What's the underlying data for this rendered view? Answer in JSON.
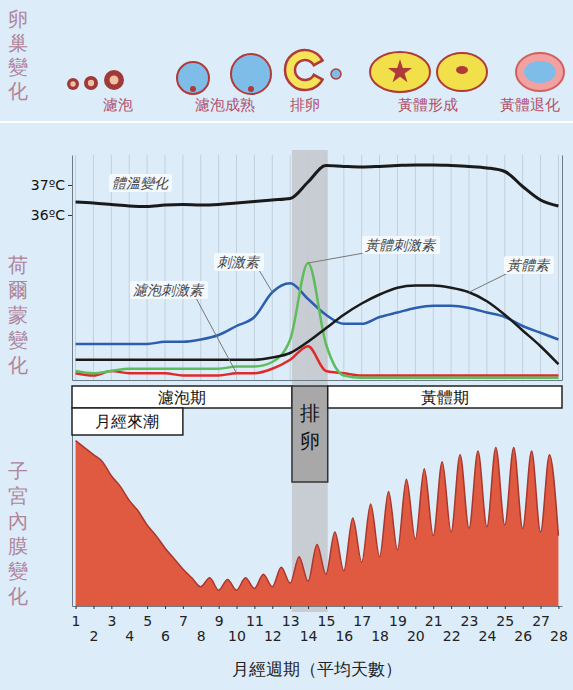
{
  "ovary": {
    "title": "卵巢變化",
    "stages": [
      "濾泡",
      "濾泡成熟",
      "排卵",
      "黃體形成",
      "黃體退化"
    ]
  },
  "chart_data": [
    {
      "type": "line",
      "title": "荷爾蒙變化",
      "x": [
        1,
        2,
        3,
        4,
        5,
        6,
        7,
        8,
        9,
        10,
        11,
        12,
        13,
        14,
        15,
        16,
        17,
        18,
        19,
        20,
        21,
        22,
        23,
        24,
        25,
        26,
        27,
        28
      ],
      "xlim": [
        0.8,
        28.2
      ],
      "xticks": [
        1,
        2,
        3,
        4,
        5,
        6,
        7,
        8,
        9,
        10,
        11,
        12,
        13,
        14,
        15,
        16,
        17,
        18,
        19,
        20,
        21,
        22,
        23,
        24,
        25,
        26,
        27,
        28
      ],
      "tick_labels": "y",
      "grid": "x",
      "ylim": [
        30.5,
        38
      ],
      "yticks": [
        {
          "value": 36,
          "label": "36ºC"
        },
        {
          "value": 37,
          "label": "37ºC"
        }
      ],
      "y2lim": [
        0,
        100
      ],
      "series": [
        {
          "name": "體溫變化",
          "color": "#1a1a1a",
          "values": [
            36.43,
            36.4,
            36.35,
            36.3,
            36.28,
            36.33,
            36.35,
            36.33,
            36.35,
            36.4,
            36.45,
            36.5,
            36.55,
            37.1,
            37.65,
            37.62,
            37.6,
            37.62,
            37.65,
            37.67,
            37.67,
            37.65,
            37.62,
            37.57,
            37.45,
            36.95,
            36.5,
            36.3
          ]
        },
        {
          "name": "刺激素",
          "color": "#2b5fae",
          "axis": "y2",
          "values": [
            16,
            16,
            16,
            16,
            16,
            17,
            17,
            18,
            20,
            24,
            28,
            39,
            43,
            36,
            29,
            25,
            25,
            28,
            30,
            32,
            33,
            33,
            32,
            30,
            28,
            24,
            21,
            18
          ]
        },
        {
          "name": "濾泡刺激素",
          "color": "#e02a2a",
          "axis": "y2",
          "values": [
            3,
            2,
            4,
            3,
            3,
            3,
            2,
            2,
            2,
            3,
            3,
            5,
            9,
            15,
            4,
            3,
            2,
            2,
            2,
            2,
            2,
            2,
            2,
            2,
            2,
            2,
            2,
            2
          ]
        },
        {
          "name": "黃體刺激素",
          "color": "#5cbd5a",
          "axis": "y2",
          "values": [
            4,
            3,
            4,
            5,
            5,
            5,
            5,
            5,
            5,
            6,
            6,
            8,
            18,
            52,
            16,
            2,
            1,
            1,
            1,
            1,
            1,
            1,
            1,
            1,
            1,
            1,
            1,
            1
          ]
        },
        {
          "name": "黃體素",
          "color": "#1a1a1a",
          "axis": "y2",
          "values": [
            9,
            9,
            9,
            9,
            9,
            9,
            9,
            9,
            9,
            9,
            9,
            10,
            12,
            17,
            23,
            29,
            34,
            38,
            41,
            42,
            42,
            41,
            39,
            35,
            29,
            22,
            15,
            7
          ]
        }
      ],
      "phases": [
        {
          "label": "濾泡期",
          "range": [
            0.8,
            13.1
          ]
        },
        {
          "label": "排卵",
          "range": [
            13.1,
            15.1
          ]
        },
        {
          "label": "黃體期",
          "range": [
            15.1,
            28.2
          ]
        },
        {
          "label": "月經來潮",
          "range": [
            0.8,
            7
          ]
        }
      ]
    },
    {
      "type": "area",
      "title": "子宮內膜變化",
      "xlabel": "月經週期（平均天數）",
      "x": [
        1,
        1.5,
        2,
        2.5,
        3,
        3.5,
        4,
        4.5,
        5,
        5.5,
        6,
        6.5,
        7,
        7.5,
        8,
        8.5,
        9,
        9.5,
        10,
        10.5,
        11,
        11.5,
        12,
        12.5,
        13,
        13.5,
        14,
        14.5,
        15,
        15.5,
        16,
        16.5,
        17,
        17.5,
        18,
        18.5,
        19,
        19.5,
        20,
        20.5,
        21,
        21.5,
        22,
        22.5,
        23,
        23.5,
        24,
        24.5,
        25,
        25.5,
        26,
        26.5,
        27,
        27.5,
        28
      ],
      "xlim": [
        0.8,
        28.2
      ],
      "xticks": [
        1,
        2,
        3,
        4,
        5,
        6,
        7,
        8,
        9,
        10,
        11,
        12,
        13,
        14,
        15,
        16,
        17,
        18,
        19,
        20,
        21,
        22,
        23,
        24,
        25,
        26,
        27,
        28
      ],
      "ylim": [
        0,
        100
      ],
      "tick_labels": "x",
      "series": [
        {
          "color": "#df5a40",
          "values": [
            94,
            90,
            86,
            82,
            74,
            68,
            60,
            54,
            46,
            40,
            33,
            27,
            21,
            16,
            11,
            16,
            9,
            15,
            9,
            16,
            10,
            18,
            11,
            22,
            13,
            28,
            14,
            35,
            18,
            42,
            20,
            50,
            25,
            58,
            28,
            65,
            32,
            72,
            38,
            78,
            40,
            82,
            42,
            86,
            44,
            88,
            45,
            90,
            46,
            90,
            44,
            88,
            42,
            86,
            40
          ]
        }
      ]
    }
  ]
}
